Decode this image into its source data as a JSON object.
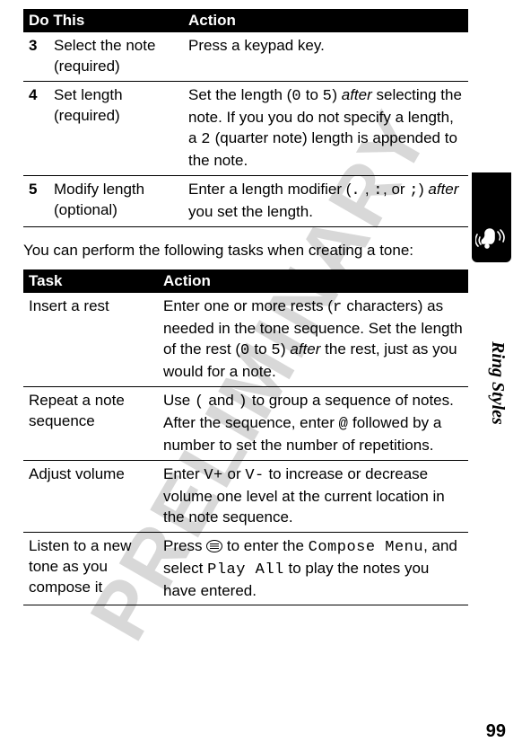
{
  "watermark": "PRELIMINARY",
  "sideLabel": "Ring Styles",
  "pageNumber": "99",
  "table1": {
    "headers": {
      "c1": "Do This",
      "c2": "Action"
    },
    "rows": [
      {
        "num": "3",
        "step": "Select the note (required)",
        "action_parts": [
          {
            "t": "Press a keypad key."
          }
        ]
      },
      {
        "num": "4",
        "step": "Set length (required)",
        "action_parts": [
          {
            "t": "Set the length ("
          },
          {
            "t": "0",
            "mono": true
          },
          {
            "t": " to "
          },
          {
            "t": "5",
            "mono": true
          },
          {
            "t": ") "
          },
          {
            "t": "after",
            "italic": true
          },
          {
            "t": " selecting the note. If you you do not specify a length, a "
          },
          {
            "t": "2",
            "mono": true
          },
          {
            "t": " (quarter note) length is appended to the note."
          }
        ]
      },
      {
        "num": "5",
        "step": "Modify length (optional)",
        "action_parts": [
          {
            "t": "Enter a length modifier ("
          },
          {
            "t": ".",
            "mono": true
          },
          {
            "t": " , "
          },
          {
            "t": ":",
            "mono": true
          },
          {
            "t": ", or "
          },
          {
            "t": ";",
            "mono": true
          },
          {
            "t": ") "
          },
          {
            "t": "after",
            "italic": true
          },
          {
            "t": " you set the length."
          }
        ]
      }
    ]
  },
  "bodyText": "You can perform the following tasks when creating a tone:",
  "table2": {
    "headers": {
      "c1": "Task",
      "c2": "Action"
    },
    "rows": [
      {
        "task": "Insert a rest",
        "action_parts": [
          {
            "t": "Enter one or more rests ("
          },
          {
            "t": "r",
            "mono": true
          },
          {
            "t": " characters) as needed in the tone sequence. Set the length of the rest ("
          },
          {
            "t": "0",
            "mono": true
          },
          {
            "t": " to "
          },
          {
            "t": "5",
            "mono": true
          },
          {
            "t": ") "
          },
          {
            "t": "after",
            "italic": true
          },
          {
            "t": " the rest, just as you would for a note."
          }
        ]
      },
      {
        "task": "Repeat a note sequence",
        "action_parts": [
          {
            "t": "Use "
          },
          {
            "t": "(",
            "mono": true
          },
          {
            "t": " and "
          },
          {
            "t": ")",
            "mono": true
          },
          {
            "t": " to group a sequence of notes. After the sequence, enter "
          },
          {
            "t": "@",
            "mono": true
          },
          {
            "t": " followed by a number to set the number of repetitions."
          }
        ]
      },
      {
        "task": "Adjust volume",
        "action_parts": [
          {
            "t": "Enter "
          },
          {
            "t": "V+",
            "mono": true
          },
          {
            "t": " or "
          },
          {
            "t": "V-",
            "mono": true
          },
          {
            "t": " to increase or decrease volume one level at the current location in the note sequence."
          }
        ]
      },
      {
        "task": "Listen to a new tone as you compose it",
        "action_parts": [
          {
            "t": "Press "
          },
          {
            "menu_key": true
          },
          {
            "t": " to enter the "
          },
          {
            "t": "Compose Menu",
            "mono": true
          },
          {
            "t": ", and select "
          },
          {
            "t": "Play All",
            "mono": true
          },
          {
            "t": " to play the notes you have entered."
          }
        ]
      }
    ]
  }
}
